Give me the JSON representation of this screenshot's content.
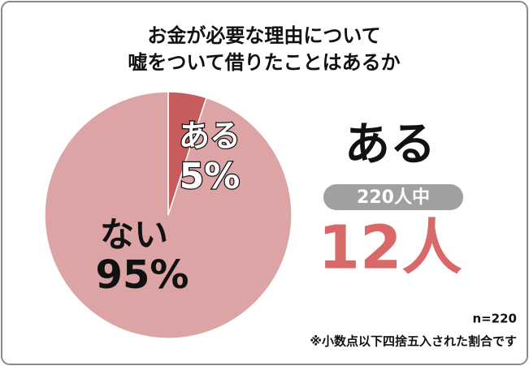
{
  "chart_data": {
    "type": "pie",
    "title": [
      "お金が必要な理由について",
      "嘘をついて借りたことはあるか"
    ],
    "categories": [
      "ある",
      "ない"
    ],
    "values": [
      5,
      95
    ],
    "value_labels": [
      "5%",
      "95%"
    ],
    "colors": [
      "#c65c5c",
      "#dca4a4"
    ],
    "annotations": {
      "highlight": "ある",
      "pill": "220人中",
      "count": "12人"
    },
    "notes": [
      "n=220",
      "※小数点以下四捨五入された割合です"
    ]
  }
}
